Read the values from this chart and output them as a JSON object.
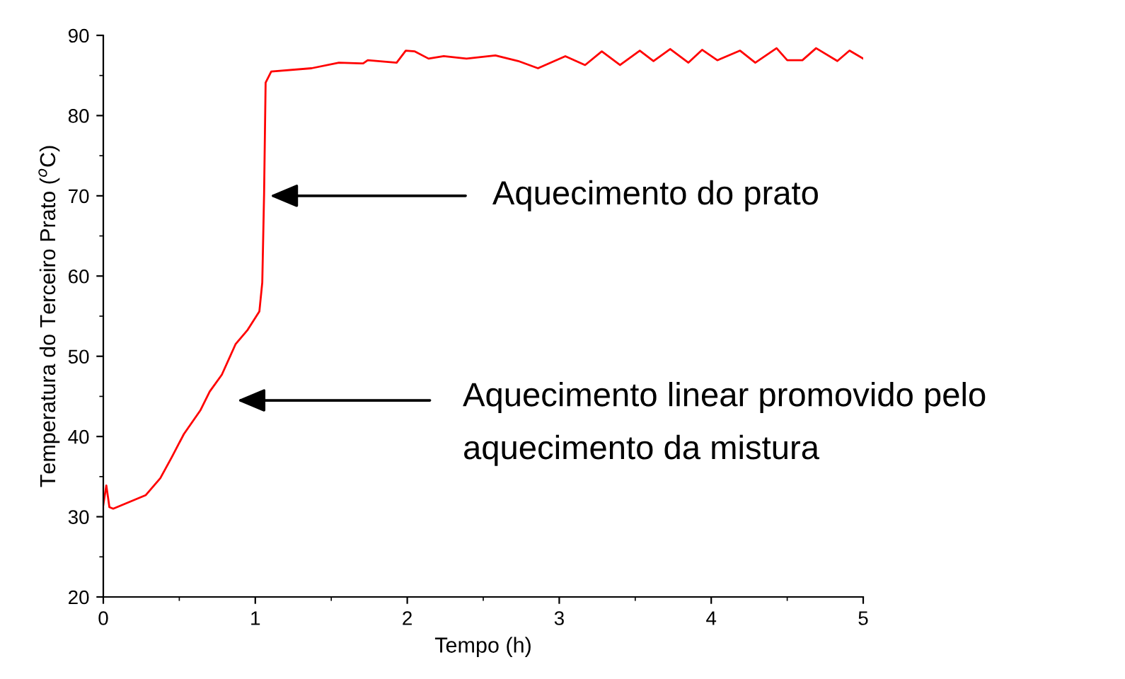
{
  "chart_data": {
    "type": "line",
    "xlabel": "Tempo (h)",
    "ylabel": "Temperatura do Terceiro Prato ($^{o}$C)",
    "xlim": [
      0,
      5
    ],
    "xticks": [
      0,
      1,
      2,
      3,
      4,
      5
    ],
    "ylim": [
      20,
      90
    ],
    "yticks": [
      20,
      30,
      40,
      50,
      60,
      70,
      80,
      90
    ],
    "grid": false,
    "legend": false,
    "marker": "none",
    "line_style": "solid",
    "series": [
      {
        "color": "#ff0000",
        "x": [
          0.0,
          0.02,
          0.04,
          0.065,
          0.28,
          0.375,
          0.45,
          0.53,
          0.64,
          0.7,
          0.78,
          0.87,
          0.95,
          1.027,
          1.046,
          1.058,
          1.068,
          1.105,
          1.37,
          1.55,
          1.71,
          1.74,
          1.93,
          1.99,
          2.05,
          2.14,
          2.24,
          2.39,
          2.58,
          2.73,
          2.86,
          3.04,
          3.17,
          3.28,
          3.4,
          3.53,
          3.62,
          3.73,
          3.85,
          3.94,
          4.04,
          4.19,
          4.29,
          4.43,
          4.5,
          4.6,
          4.69,
          4.83,
          4.91,
          5.0
        ],
        "values": [
          31.5,
          33.9,
          31.2,
          31.0,
          32.7,
          34.8,
          37.4,
          40.3,
          43.3,
          45.6,
          47.7,
          51.5,
          53.3,
          55.6,
          59.2,
          70.3,
          84.1,
          85.5,
          85.9,
          86.6,
          86.5,
          86.9,
          86.6,
          88.1,
          88.0,
          87.1,
          87.4,
          87.1,
          87.5,
          86.8,
          85.9,
          87.4,
          86.3,
          88.0,
          86.3,
          88.1,
          86.8,
          88.3,
          86.6,
          88.2,
          86.9,
          88.1,
          86.6,
          88.4,
          86.9,
          86.9,
          88.4,
          86.8,
          88.1,
          87.1
        ]
      }
    ],
    "annotations": [
      {
        "text": "Aquecimento do prato",
        "x": 1.07,
        "y": 70
      },
      "Aquecimento linear promovido pelo aquecimento da mistura"
    ]
  }
}
